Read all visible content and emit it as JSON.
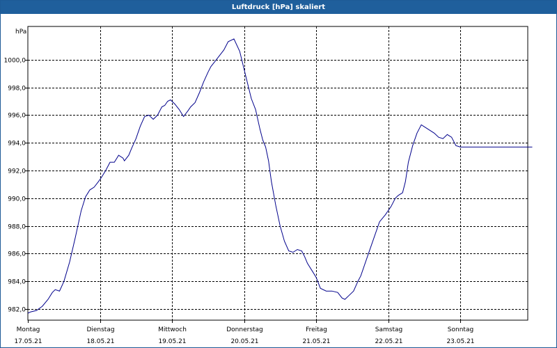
{
  "window": {
    "title": "Luftdruck [hPa] skaliert"
  },
  "colors": {
    "titlebar": "#1f5f9c",
    "line": "#00008b",
    "grid": "#000000"
  },
  "chart_data": {
    "type": "line",
    "title": "Luftdruck [hPa] skaliert",
    "ylabel": "hPa",
    "ylim": [
      981.2,
      1002.4
    ],
    "yticks": [
      {
        "value": 982,
        "label": "982,0"
      },
      {
        "value": 984,
        "label": "984,0"
      },
      {
        "value": 986,
        "label": "986,0"
      },
      {
        "value": 988,
        "label": "988,0"
      },
      {
        "value": 990,
        "label": "990,0"
      },
      {
        "value": 992,
        "label": "992,0"
      },
      {
        "value": 994,
        "label": "994,0"
      },
      {
        "value": 996,
        "label": "996,0"
      },
      {
        "value": 998,
        "label": "998,0"
      },
      {
        "value": 1000,
        "label": "1000,0"
      }
    ],
    "xlim": [
      0,
      7.0
    ],
    "xticks": [
      {
        "value": 0,
        "day": "Montag",
        "date": "17.05.21"
      },
      {
        "value": 1,
        "day": "Dienstag",
        "date": "18.05.21"
      },
      {
        "value": 2,
        "day": "Mittwoch",
        "date": "19.05.21"
      },
      {
        "value": 3,
        "day": "Donnerstag",
        "date": "20.05.21"
      },
      {
        "value": 4,
        "day": "Freitag",
        "date": "21.05.21"
      },
      {
        "value": 5,
        "day": "Samstag",
        "date": "22.05.21"
      },
      {
        "value": 6,
        "day": "Sonntag",
        "date": "23.05.21"
      }
    ],
    "grid": true,
    "series": [
      {
        "x": [
          0.0,
          0.04,
          0.12,
          0.2,
          0.28,
          0.34,
          0.38,
          0.44,
          0.5,
          0.58,
          0.66,
          0.74,
          0.8,
          0.86,
          0.92,
          0.98,
          1.02,
          1.08,
          1.14,
          1.2,
          1.26,
          1.32,
          1.34,
          1.4,
          1.44,
          1.5,
          1.56,
          1.62,
          1.68,
          1.74,
          1.8,
          1.86,
          1.9,
          1.94,
          1.98,
          2.04,
          2.1,
          2.16,
          2.22,
          2.26,
          2.32,
          2.38,
          2.44,
          2.5,
          2.54,
          2.6,
          2.66,
          2.72,
          2.78,
          2.86,
          2.94,
          3.02,
          3.1,
          3.16,
          3.22,
          3.26,
          3.3,
          3.34,
          3.38,
          3.44,
          3.5,
          3.56,
          3.62,
          3.68,
          3.74,
          3.8,
          3.84,
          3.88,
          3.94,
          4.0,
          4.06,
          4.14,
          4.22,
          4.3,
          4.36,
          4.4,
          4.46,
          4.52,
          4.58,
          4.62,
          4.66,
          4.72,
          4.8,
          4.88,
          4.96,
          5.04,
          5.1,
          5.14,
          5.2,
          5.24,
          5.28,
          5.34,
          5.4,
          5.46,
          5.52,
          5.58,
          5.64,
          5.7,
          5.76,
          5.82,
          5.88,
          5.94,
          6.0,
          6.06,
          6.12,
          6.18,
          6.24,
          6.28,
          6.34,
          6.38,
          6.44,
          6.5,
          6.56,
          6.6,
          6.64,
          6.68,
          6.72,
          6.76,
          6.82,
          6.88,
          6.94,
          6.98,
          7.0
        ],
        "y": [
          981.7,
          981.8,
          981.9,
          982.2,
          982.7,
          983.2,
          983.4,
          983.3,
          984.0,
          985.4,
          987.2,
          989.1,
          990.1,
          990.6,
          990.8,
          991.2,
          991.5,
          992.0,
          992.6,
          992.6,
          993.1,
          992.9,
          992.7,
          993.1,
          993.6,
          994.3,
          995.2,
          995.9,
          996.0,
          995.7,
          996.0,
          996.6,
          996.7,
          997.0,
          997.1,
          996.8,
          996.4,
          995.9,
          996.3,
          996.6,
          996.9,
          997.6,
          998.4,
          999.1,
          999.5,
          999.9,
          1000.3,
          1000.7,
          1001.3,
          1001.5,
          1000.6,
          998.9,
          997.2,
          996.4,
          995.0,
          994.2,
          993.7,
          992.7,
          991.2,
          989.5,
          988.0,
          986.9,
          986.2,
          986.1,
          986.3,
          986.2,
          985.8,
          985.3,
          984.8,
          984.3,
          983.5,
          983.3,
          983.3,
          983.2,
          982.8,
          982.7,
          983.0,
          983.3,
          984.0,
          984.4,
          985.0,
          985.9,
          987.1,
          988.3,
          988.8,
          989.4,
          990.0,
          990.2,
          990.4,
          991.2,
          992.6,
          993.8,
          994.7,
          995.3,
          995.1,
          994.9,
          994.7,
          994.4,
          994.3,
          994.6,
          994.4,
          993.8,
          993.7,
          993.7,
          993.7,
          993.7,
          993.7,
          993.7,
          993.7,
          993.7,
          993.7,
          993.7,
          993.7,
          993.7,
          993.7,
          993.7,
          993.7,
          993.7,
          993.7,
          993.7,
          993.7,
          993.7,
          993.7
        ]
      }
    ]
  }
}
